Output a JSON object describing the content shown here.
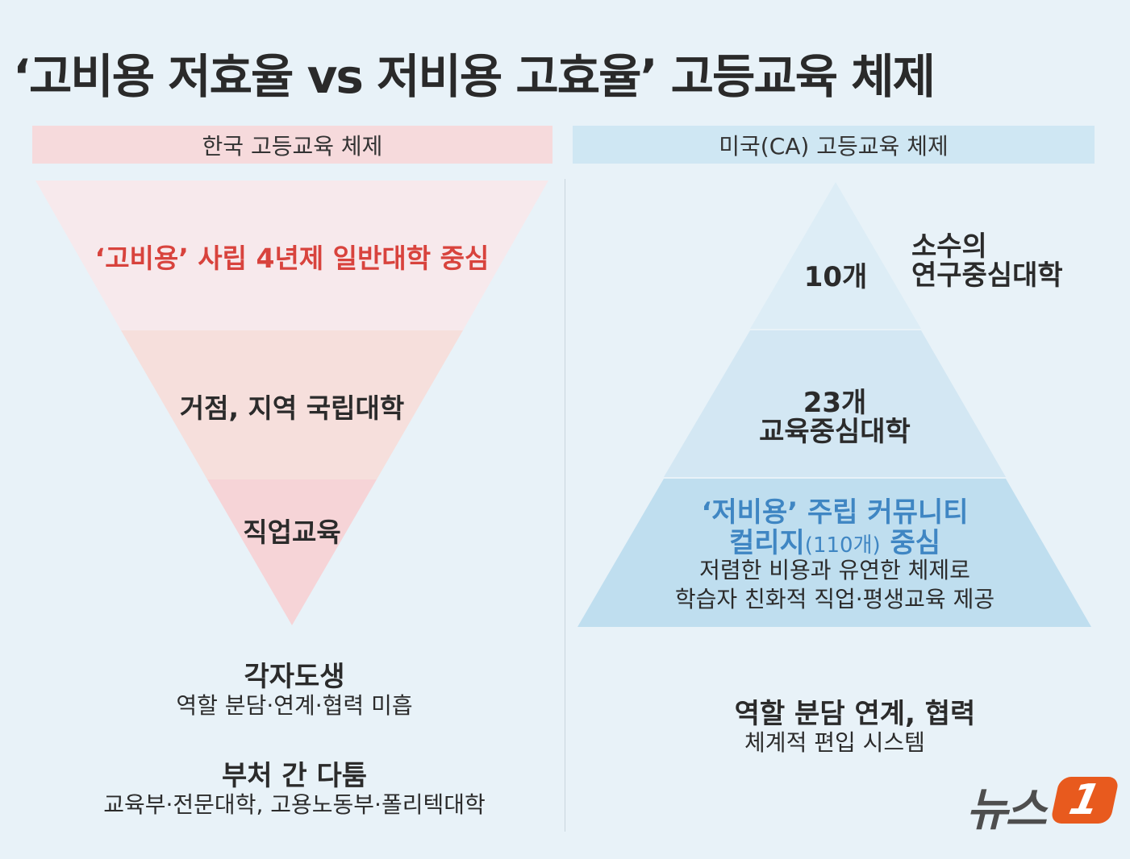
{
  "title": "‘고비용 저효율 vs 저비용 고효율’ 고등교육 체제",
  "left": {
    "header": "한국 고등교육 체제",
    "tier1": "‘고비용’ 사립 4년제 일반대학 중심",
    "tier2": "거점, 지역 국립대학",
    "tier3": "직업교육",
    "note1_title": "각자도생",
    "note1_desc": "역할 분담·연계·협력 미흡",
    "note2_title": "부처 간 다툼",
    "note2_desc": "교육부·전문대학, 고용노동부·폴리텍대학"
  },
  "right": {
    "header": "미국(CA) 고등교육 체제",
    "tier1_count": "10개",
    "tier1_label_line1": "소수의",
    "tier1_label_line2": "연구중심대학",
    "tier2_count": "23개",
    "tier2_label": "교육중심대학",
    "tier3_line1": "‘저비용’ 주립 커뮤니티",
    "tier3_line2_a": "컬리지",
    "tier3_line2_b": "(110개)",
    "tier3_line2_c": " 중심",
    "tier3_desc1": "저렴한 비용과 유연한 체제로",
    "tier3_desc2": "학습자 친화적 직업·평생교육 제공",
    "note_title": "역할 분담 연계, 협력",
    "note_desc": "체계적 편입 시스템"
  },
  "logo": {
    "text": "뉴스",
    "badge": "1"
  },
  "colors": {
    "background": "#e8f2f8",
    "left_tier1": "#f7e9ec",
    "left_tier2": "#f6dfdc",
    "left_tier3": "#f6d4d7",
    "right_tier1": "#ddedf6",
    "right_tier2": "#d3e7f3",
    "right_tier3": "#bfdeef",
    "accent_red": "#d8433d",
    "accent_blue": "#3f86c3",
    "logo_orange": "#e85a1e"
  }
}
